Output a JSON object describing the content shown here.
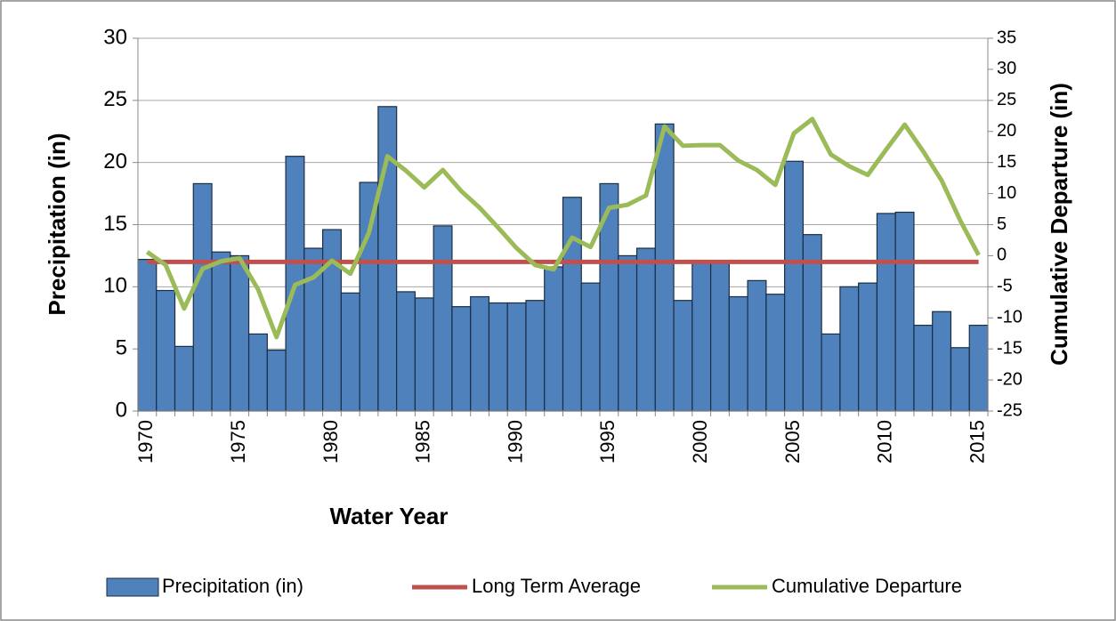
{
  "chart_data": {
    "type": "bar",
    "xlabel": "Water Year",
    "ylabel": "Precipitation (in)",
    "y2label": "Cumulative Departure (in)",
    "categories": [
      "1970",
      null,
      null,
      null,
      null,
      "1975",
      null,
      null,
      null,
      null,
      "1980",
      null,
      null,
      null,
      null,
      "1985",
      null,
      null,
      null,
      null,
      "1990",
      null,
      null,
      null,
      null,
      "1995",
      null,
      null,
      null,
      null,
      "2000",
      null,
      null,
      null,
      null,
      "2005",
      null,
      null,
      null,
      null,
      "2010",
      null,
      null,
      null,
      null,
      "2015"
    ],
    "series": [
      {
        "name": "Precipitation (in)",
        "type": "bar",
        "color": "#4f81bd",
        "values": [
          12.2,
          9.7,
          5.2,
          18.3,
          12.8,
          12.5,
          6.2,
          4.9,
          20.5,
          13.1,
          14.6,
          9.5,
          18.4,
          24.5,
          9.6,
          9.1,
          14.9,
          8.4,
          9.2,
          8.7,
          8.7,
          8.9,
          11.6,
          17.2,
          10.3,
          18.3,
          12.5,
          13.1,
          23.1,
          8.9,
          12.0,
          12.0,
          9.2,
          10.5,
          9.4,
          20.1,
          14.2,
          6.2,
          10.0,
          10.3,
          15.9,
          16.0,
          6.9,
          8.0,
          5.1,
          6.9
        ]
      },
      {
        "name": "Long Term Average",
        "type": "line",
        "color": "#c0504d",
        "values": [
          12.0,
          12.0,
          12.0,
          12.0,
          12.0,
          12.0,
          12.0,
          12.0,
          12.0,
          12.0,
          12.0,
          12.0,
          12.0,
          12.0,
          12.0,
          12.0,
          12.0,
          12.0,
          12.0,
          12.0,
          12.0,
          12.0,
          12.0,
          12.0,
          12.0,
          12.0,
          12.0,
          12.0,
          12.0,
          12.0,
          12.0,
          12.0,
          12.0,
          12.0,
          12.0,
          12.0,
          12.0,
          12.0,
          12.0,
          12.0,
          12.0,
          12.0,
          12.0,
          12.0,
          12.0,
          12.0
        ]
      },
      {
        "name": "Cumulative Departure",
        "type": "line",
        "axis": "y2",
        "color": "#9bbb59",
        "values": [
          0.6,
          -1.5,
          -8.5,
          -2.1,
          -0.9,
          -0.4,
          -5.4,
          -13.1,
          -4.7,
          -3.5,
          -0.8,
          -2.9,
          3.7,
          16.0,
          13.7,
          11.0,
          13.8,
          10.4,
          7.7,
          4.5,
          1.2,
          -1.5,
          -2.2,
          2.9,
          1.4,
          7.7,
          8.2,
          9.7,
          20.8,
          17.7,
          17.8,
          17.8,
          15.3,
          13.8,
          11.4,
          19.7,
          22.0,
          16.3,
          14.4,
          13.0,
          17.1,
          21.1,
          16.8,
          12.1,
          5.7,
          0.1
        ]
      }
    ],
    "ylim": [
      0,
      30
    ],
    "yticks": [
      0,
      5,
      10,
      15,
      20,
      25,
      30
    ],
    "y2lim": [
      -25,
      35
    ],
    "y2ticks": [
      -25,
      -20,
      -15,
      -10,
      -5,
      0,
      5,
      10,
      15,
      20,
      25,
      30,
      35
    ],
    "grid": true,
    "legend": "bottom"
  }
}
